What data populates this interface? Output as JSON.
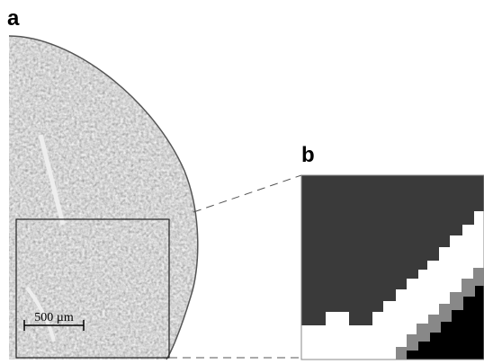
{
  "panels": [
    {
      "label": "a",
      "scale_bar": "500 µm"
    },
    {
      "label": "b"
    }
  ]
}
